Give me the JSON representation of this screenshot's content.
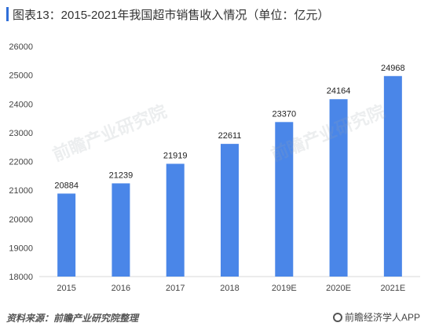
{
  "title": "图表13：2015-2021年我国超市销售收入情况（单位：亿元）",
  "watermark": "前瞻产业研究院",
  "footer": {
    "source": "资料来源：前瞻产业研究院整理",
    "brand": "前瞻经济学人APP"
  },
  "colors": {
    "bar": "#4a86e8",
    "accent": "#2f6ed8",
    "axis": "#d9d9d9"
  },
  "chart_data": {
    "type": "bar",
    "title": "图表13：2015-2021年我国超市销售收入情况（单位：亿元）",
    "categories": [
      "2015",
      "2016",
      "2017",
      "2018",
      "2019E",
      "2020E",
      "2021E"
    ],
    "values": [
      20884,
      21239,
      21919,
      22611,
      23370,
      24164,
      24968
    ],
    "ylim": [
      18000,
      26000
    ],
    "yticks": [
      "18000",
      "19000",
      "20000",
      "21000",
      "22000",
      "23000",
      "24000",
      "25000",
      "26000"
    ],
    "xlabel": "",
    "ylabel": "",
    "grid": false,
    "data_labels": true
  }
}
